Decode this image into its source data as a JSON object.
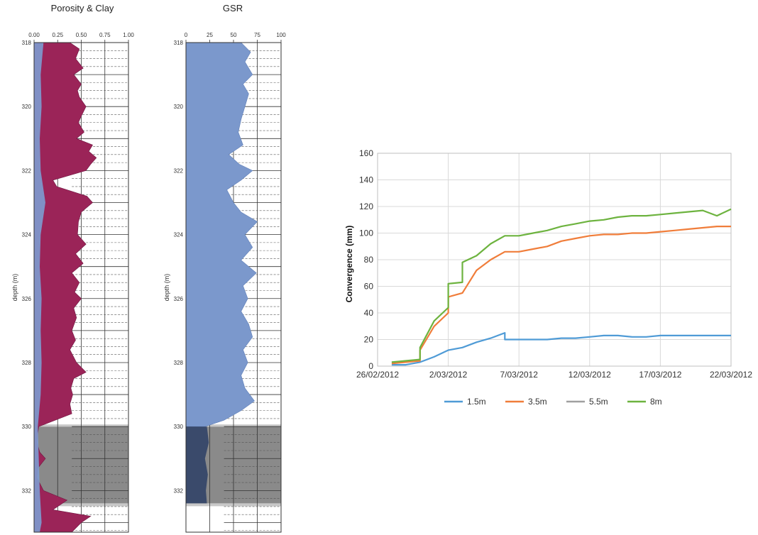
{
  "chart_data": [
    {
      "type": "area",
      "title": "Porosity & Clay",
      "ylabel": "depth (m)",
      "x_ticks": [
        "0.00",
        "0.25",
        "0.50",
        "0.75",
        "1.00"
      ],
      "xlim": [
        0,
        1
      ],
      "y_ticks": [
        "318",
        "320",
        "322",
        "324",
        "326",
        "328",
        "330",
        "332"
      ],
      "ylim": [
        318,
        333.3
      ],
      "colors": {
        "porosity": "#9b2458",
        "clay": "#7d9cd1",
        "core_gap": "#8a8a8a",
        "core_gap_light": "#d0d0d0"
      },
      "gap_intervals": [
        [
          330,
          332.4
        ]
      ],
      "series": [
        {
          "key": "porosity",
          "depth": [
            318,
            318.2,
            318.5,
            318.8,
            319.0,
            319.3,
            319.5,
            319.7,
            320.0,
            320.3,
            320.5,
            320.8,
            321.0,
            321.2,
            321.4,
            321.6,
            321.8,
            322.0,
            322.3,
            322.5,
            322.8,
            323.0,
            323.3,
            323.6,
            324.0,
            324.3,
            324.6,
            324.9,
            325.2,
            325.5,
            325.8,
            326.0,
            326.3,
            326.6,
            327.0,
            327.3,
            327.6,
            328.0,
            328.3,
            328.5,
            328.8,
            329.0,
            329.3,
            329.6,
            330.0,
            330.2,
            330.5,
            330.8,
            331.0,
            331.3,
            331.6,
            332.0,
            332.3,
            332.6,
            332.8,
            333.0,
            333.3
          ],
          "values": [
            0.38,
            0.48,
            0.44,
            0.52,
            0.42,
            0.5,
            0.46,
            0.48,
            0.55,
            0.5,
            0.47,
            0.53,
            0.45,
            0.62,
            0.58,
            0.66,
            0.6,
            0.55,
            0.2,
            0.24,
            0.56,
            0.62,
            0.5,
            0.47,
            0.46,
            0.55,
            0.44,
            0.52,
            0.4,
            0.48,
            0.43,
            0.5,
            0.42,
            0.45,
            0.4,
            0.44,
            0.38,
            0.45,
            0.55,
            0.42,
            0.39,
            0.41,
            0.38,
            0.4,
            0.05,
            0.04,
            0.03,
            0.06,
            0.12,
            0.04,
            0.03,
            0.1,
            0.35,
            0.2,
            0.6,
            0.5,
            0.4
          ]
        },
        {
          "key": "clay",
          "depth": [
            318,
            319,
            320,
            321,
            322,
            323,
            324,
            325,
            326,
            327,
            328,
            329,
            330,
            331,
            332,
            333,
            333.3
          ],
          "values": [
            0.1,
            0.07,
            0.08,
            0.06,
            0.07,
            0.12,
            0.07,
            0.06,
            0.08,
            0.07,
            0.08,
            0.07,
            0.04,
            0.05,
            0.06,
            0.08,
            0.06
          ]
        }
      ]
    },
    {
      "type": "area",
      "title": "GSR",
      "ylabel": "depth (m)",
      "x_ticks": [
        "0",
        "25",
        "50",
        "75",
        "100"
      ],
      "xlim": [
        0,
        100
      ],
      "y_ticks": [
        "318",
        "320",
        "322",
        "324",
        "326",
        "328",
        "330",
        "332"
      ],
      "ylim": [
        318,
        333.3
      ],
      "colors": {
        "gsr": "#7b98cc",
        "gsr_dark": "#3a4a6b",
        "core_gap": "#8a8a8a"
      },
      "gap_intervals": [
        [
          330,
          332.4
        ]
      ],
      "series": [
        {
          "key": "gsr",
          "depth": [
            318,
            318.3,
            318.6,
            319.0,
            319.3,
            319.6,
            320.0,
            320.4,
            320.8,
            321.2,
            321.5,
            321.8,
            322.0,
            322.3,
            322.6,
            323.0,
            323.3,
            323.6,
            324.0,
            324.4,
            324.8,
            325.2,
            325.6,
            326.0,
            326.4,
            326.8,
            327.2,
            327.6,
            328.0,
            328.4,
            328.8,
            329.2,
            329.5,
            329.8,
            330.0
          ],
          "values": [
            58,
            68,
            62,
            70,
            60,
            66,
            62,
            58,
            55,
            60,
            45,
            56,
            70,
            58,
            43,
            50,
            58,
            75,
            62,
            70,
            58,
            74,
            60,
            65,
            58,
            66,
            70,
            60,
            65,
            58,
            62,
            72,
            58,
            40,
            20
          ]
        },
        {
          "key": "gsr_dark",
          "depth": [
            330,
            330.5,
            331,
            331.5,
            332,
            332.4
          ],
          "values": [
            22,
            24,
            20,
            23,
            21,
            22
          ]
        }
      ]
    },
    {
      "type": "line",
      "title": "",
      "xlabel": "",
      "ylabel": "Convergence (mm)",
      "ylim": [
        0,
        160
      ],
      "y_ticks": [
        0,
        20,
        40,
        60,
        80,
        100,
        120,
        140,
        160
      ],
      "x_ticks": [
        "26/02/2012",
        "2/03/2012",
        "7/03/2012",
        "12/03/2012",
        "17/03/2012",
        "22/03/2012"
      ],
      "x_tick_dates": [
        "2012-02-26",
        "2012-03-02",
        "2012-03-07",
        "2012-03-12",
        "2012-03-17",
        "2012-03-22"
      ],
      "legend_position": "bottom",
      "grid": true,
      "series": [
        {
          "name": "1.5m",
          "color": "#4f9bd6",
          "x": [
            "2012-02-27",
            "2012-02-28",
            "2012-02-29",
            "2012-03-01",
            "2012-03-02",
            "2012-03-03",
            "2012-03-04",
            "2012-03-05",
            "2012-03-06",
            "2012-03-06",
            "2012-03-07",
            "2012-03-08",
            "2012-03-09",
            "2012-03-10",
            "2012-03-11",
            "2012-03-12",
            "2012-03-13",
            "2012-03-14",
            "2012-03-15",
            "2012-03-16",
            "2012-03-17",
            "2012-03-18",
            "2012-03-19",
            "2012-03-20",
            "2012-03-21",
            "2012-03-22"
          ],
          "y": [
            1,
            1,
            3,
            7,
            12,
            14,
            18,
            21,
            25,
            20,
            20,
            20,
            20,
            21,
            21,
            22,
            23,
            23,
            22,
            22,
            23,
            23,
            23,
            23,
            23,
            23
          ]
        },
        {
          "name": "3.5m",
          "color": "#f07d3a",
          "x": [
            "2012-02-27",
            "2012-02-28",
            "2012-02-29",
            "2012-02-29",
            "2012-03-01",
            "2012-03-02",
            "2012-03-02",
            "2012-03-03",
            "2012-03-04",
            "2012-03-05",
            "2012-03-06",
            "2012-03-07",
            "2012-03-08",
            "2012-03-09",
            "2012-03-10",
            "2012-03-11",
            "2012-03-12",
            "2012-03-13",
            "2012-03-14",
            "2012-03-15",
            "2012-03-16",
            "2012-03-17",
            "2012-03-18",
            "2012-03-19",
            "2012-03-20",
            "2012-03-21",
            "2012-03-22"
          ],
          "y": [
            2,
            3,
            4,
            12,
            30,
            40,
            52,
            55,
            72,
            80,
            86,
            86,
            88,
            90,
            94,
            96,
            98,
            99,
            99,
            100,
            100,
            101,
            102,
            103,
            104,
            105,
            105
          ]
        },
        {
          "name": "5.5m",
          "color": "#a0a0a0",
          "x": [],
          "y": []
        },
        {
          "name": "8m",
          "color": "#6db33f",
          "x": [
            "2012-02-27",
            "2012-02-28",
            "2012-02-29",
            "2012-02-29",
            "2012-03-01",
            "2012-03-02",
            "2012-03-02",
            "2012-03-03",
            "2012-03-03",
            "2012-03-04",
            "2012-03-05",
            "2012-03-06",
            "2012-03-07",
            "2012-03-08",
            "2012-03-09",
            "2012-03-10",
            "2012-03-11",
            "2012-03-12",
            "2012-03-13",
            "2012-03-14",
            "2012-03-15",
            "2012-03-16",
            "2012-03-17",
            "2012-03-18",
            "2012-03-19",
            "2012-03-20",
            "2012-03-21",
            "2012-03-22"
          ],
          "y": [
            3,
            4,
            5,
            14,
            34,
            44,
            62,
            63,
            78,
            83,
            92,
            98,
            98,
            100,
            102,
            105,
            107,
            109,
            110,
            112,
            113,
            113,
            114,
            115,
            116,
            117,
            113,
            118
          ]
        }
      ]
    }
  ]
}
